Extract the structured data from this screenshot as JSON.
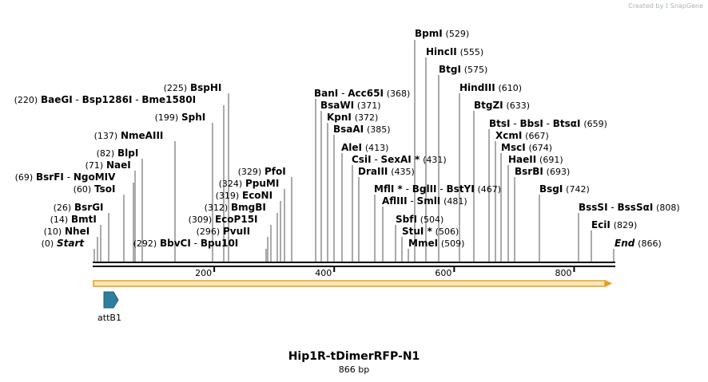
{
  "credit": {
    "text": "Created by",
    "brand": "SnapGene"
  },
  "title": "Hip1R-tDimerRFP-N1",
  "length_label": "866 bp",
  "total_bp": 866,
  "feature": {
    "name": "attB1",
    "color": "#2d7ea0"
  },
  "colors": {
    "orf_fill": "#fbe6b8",
    "orf_stroke": "#e6a020",
    "backbone": "#000000"
  },
  "ruler_ticks": [
    200,
    400,
    600,
    800
  ],
  "site_labels": [
    {
      "id": "bpmi",
      "parts": [
        {
          "t": "BpmI",
          "b": true
        }
      ],
      "pos": "(529)"
    },
    {
      "id": "hincii",
      "parts": [
        {
          "t": "HincII",
          "b": true
        }
      ],
      "pos": "(555)"
    },
    {
      "id": "btgi",
      "parts": [
        {
          "t": "BtgI",
          "b": true
        }
      ],
      "pos": "(575)"
    },
    {
      "id": "bsphi",
      "parts": [
        {
          "t": "BspHI",
          "b": true
        }
      ],
      "pos": "(225)",
      "pre": true
    },
    {
      "id": "hindiii",
      "parts": [
        {
          "t": "HindIII",
          "b": true
        }
      ],
      "pos": "(610)"
    },
    {
      "id": "bani",
      "parts": [
        {
          "t": "BanI",
          "b": true
        },
        {
          "t": "  -  "
        },
        {
          "t": "Acc65I",
          "b": true
        }
      ],
      "pos": "(368)"
    },
    {
      "id": "baegi",
      "parts": [
        {
          "t": "BaeGI",
          "b": true
        },
        {
          "t": "  -  "
        },
        {
          "t": "Bsp1286I",
          "b": true
        },
        {
          "t": "  -  "
        },
        {
          "t": "Bme1580I",
          "b": true
        }
      ],
      "pos": "(220)",
      "pre": true
    },
    {
      "id": "bsawi",
      "parts": [
        {
          "t": "BsaWI",
          "b": true
        }
      ],
      "pos": "(371)"
    },
    {
      "id": "btgzi",
      "parts": [
        {
          "t": "BtgZI",
          "b": true
        }
      ],
      "pos": "(633)"
    },
    {
      "id": "kpni",
      "parts": [
        {
          "t": "KpnI",
          "b": true
        }
      ],
      "pos": "(372)"
    },
    {
      "id": "sphi",
      "parts": [
        {
          "t": "SphI",
          "b": true
        }
      ],
      "pos": "(199)",
      "pre": true
    },
    {
      "id": "btsi",
      "parts": [
        {
          "t": "BtsI",
          "b": true
        },
        {
          "t": "  -  "
        },
        {
          "t": "BbsI",
          "b": true
        },
        {
          "t": "  -  "
        },
        {
          "t": "BtsαI",
          "b": true
        }
      ],
      "pos": "(659)"
    },
    {
      "id": "bsaai",
      "parts": [
        {
          "t": "BsaAI",
          "b": true
        }
      ],
      "pos": "(385)"
    },
    {
      "id": "nmeaiii",
      "parts": [
        {
          "t": "NmeAIII",
          "b": true
        }
      ],
      "pos": "(137)",
      "pre": true
    },
    {
      "id": "xcmi",
      "parts": [
        {
          "t": "XcmI",
          "b": true
        }
      ],
      "pos": "(667)"
    },
    {
      "id": "alei",
      "parts": [
        {
          "t": "AleI",
          "b": true
        }
      ],
      "pos": "(413)"
    },
    {
      "id": "msci",
      "parts": [
        {
          "t": "MscI",
          "b": true
        }
      ],
      "pos": "(674)"
    },
    {
      "id": "blpi",
      "parts": [
        {
          "t": "BlpI",
          "b": true
        }
      ],
      "pos": "(82)",
      "pre": true
    },
    {
      "id": "csii",
      "parts": [
        {
          "t": "CsiI",
          "b": true
        },
        {
          "t": "  -  "
        },
        {
          "t": "SexAI *",
          "b": true
        }
      ],
      "pos": "(431)"
    },
    {
      "id": "haeii",
      "parts": [
        {
          "t": "HaeII",
          "b": true
        }
      ],
      "pos": "(691)"
    },
    {
      "id": "naei",
      "parts": [
        {
          "t": "NaeI",
          "b": true
        }
      ],
      "pos": "(71)",
      "pre": true
    },
    {
      "id": "pfoi",
      "parts": [
        {
          "t": "PfoI",
          "b": true
        }
      ],
      "pos": "(329)",
      "pre": true
    },
    {
      "id": "draiii",
      "parts": [
        {
          "t": "DraIII",
          "b": true
        }
      ],
      "pos": "(435)"
    },
    {
      "id": "bsrbi",
      "parts": [
        {
          "t": "BsrBI",
          "b": true
        }
      ],
      "pos": "(693)"
    },
    {
      "id": "bsrfi",
      "parts": [
        {
          "t": "BsrFI",
          "b": true
        },
        {
          "t": "  -  "
        },
        {
          "t": "NgoMIV",
          "b": true
        }
      ],
      "pos": "(69)",
      "pre": true
    },
    {
      "id": "ppumi",
      "parts": [
        {
          "t": "PpuMI",
          "b": true
        }
      ],
      "pos": "(324)",
      "pre": true
    },
    {
      "id": "mfli",
      "parts": [
        {
          "t": "MflI *",
          "b": true
        },
        {
          "t": " - "
        },
        {
          "t": "BglII",
          "b": true
        },
        {
          "t": "  -  "
        },
        {
          "t": "BstYI",
          "b": true
        }
      ],
      "pos": "(467)"
    },
    {
      "id": "tsoi",
      "parts": [
        {
          "t": "TsoI",
          "b": true
        }
      ],
      "pos": "(60)",
      "pre": true
    },
    {
      "id": "bsgi",
      "parts": [
        {
          "t": "BsgI",
          "b": true
        }
      ],
      "pos": "(742)"
    },
    {
      "id": "econi",
      "parts": [
        {
          "t": "EcoNI",
          "b": true
        }
      ],
      "pos": "(319)",
      "pre": true
    },
    {
      "id": "afliii",
      "parts": [
        {
          "t": "AflIII",
          "b": true
        },
        {
          "t": "  -  "
        },
        {
          "t": "SmlI",
          "b": true
        }
      ],
      "pos": "(481)"
    },
    {
      "id": "bmgbi",
      "parts": [
        {
          "t": "BmgBI",
          "b": true
        }
      ],
      "pos": "(312)",
      "pre": true
    },
    {
      "id": "bsrgi",
      "parts": [
        {
          "t": "BsrGI",
          "b": true
        }
      ],
      "pos": "(26)",
      "pre": true
    },
    {
      "id": "bsssi",
      "parts": [
        {
          "t": "BssSI",
          "b": true
        },
        {
          "t": "  -  "
        },
        {
          "t": "BssSαI",
          "b": true
        }
      ],
      "pos": "(808)"
    },
    {
      "id": "sbfi",
      "parts": [
        {
          "t": "SbfI",
          "b": true
        }
      ],
      "pos": "(504)"
    },
    {
      "id": "bmti",
      "parts": [
        {
          "t": "BmtI",
          "b": true
        }
      ],
      "pos": "(14)",
      "pre": true
    },
    {
      "id": "ecop15i",
      "parts": [
        {
          "t": "EcoP15I",
          "b": true
        }
      ],
      "pos": "(309)",
      "pre": true
    },
    {
      "id": "ecii",
      "parts": [
        {
          "t": "EciI",
          "b": true
        }
      ],
      "pos": "(829)"
    },
    {
      "id": "stui",
      "parts": [
        {
          "t": "StuI *",
          "b": true
        }
      ],
      "pos": "(506)"
    },
    {
      "id": "nhei",
      "parts": [
        {
          "t": "NheI",
          "b": true
        }
      ],
      "pos": "(10)",
      "pre": true
    },
    {
      "id": "pvuii",
      "parts": [
        {
          "t": "PvuII",
          "b": true
        }
      ],
      "pos": "(296)",
      "pre": true
    },
    {
      "id": "start",
      "parts": [
        {
          "t": "Start",
          "b": true,
          "i": true
        }
      ],
      "pos": "(0)",
      "pre": true
    },
    {
      "id": "bbvci",
      "parts": [
        {
          "t": "BbvCI",
          "b": true
        },
        {
          "t": "  -  "
        },
        {
          "t": "Bpu10I",
          "b": true
        }
      ],
      "pos": "(292)",
      "pre": true
    },
    {
      "id": "mmei",
      "parts": [
        {
          "t": "MmeI",
          "b": true
        }
      ],
      "pos": "(509)"
    },
    {
      "id": "end",
      "parts": [
        {
          "t": "End",
          "b": true,
          "i": true
        }
      ],
      "pos": "(866)"
    }
  ]
}
